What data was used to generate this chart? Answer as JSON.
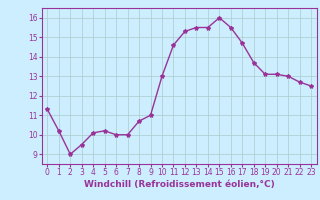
{
  "x": [
    0,
    1,
    2,
    3,
    4,
    5,
    6,
    7,
    8,
    9,
    10,
    11,
    12,
    13,
    14,
    15,
    16,
    17,
    18,
    19,
    20,
    21,
    22,
    23
  ],
  "y": [
    11.3,
    10.2,
    9.0,
    9.5,
    10.1,
    10.2,
    10.0,
    10.0,
    10.7,
    11.0,
    13.0,
    14.6,
    15.3,
    15.5,
    15.5,
    16.0,
    15.5,
    14.7,
    13.7,
    13.1,
    13.1,
    13.0,
    12.7,
    12.5
  ],
  "line_color": "#993399",
  "marker": "*",
  "marker_size": 3,
  "bg_color": "#cceeff",
  "grid_color": "#aacccc",
  "xlabel": "Windchill (Refroidissement éolien,°C)",
  "ylim": [
    8.5,
    16.5
  ],
  "xlim": [
    -0.5,
    23.5
  ],
  "yticks": [
    9,
    10,
    11,
    12,
    13,
    14,
    15,
    16
  ],
  "xticks": [
    0,
    1,
    2,
    3,
    4,
    5,
    6,
    7,
    8,
    9,
    10,
    11,
    12,
    13,
    14,
    15,
    16,
    17,
    18,
    19,
    20,
    21,
    22,
    23
  ],
  "tick_label_color": "#993399",
  "tick_label_size": 5.5,
  "xlabel_size": 6.5,
  "line_width": 1.0,
  "spine_color": "#993399"
}
